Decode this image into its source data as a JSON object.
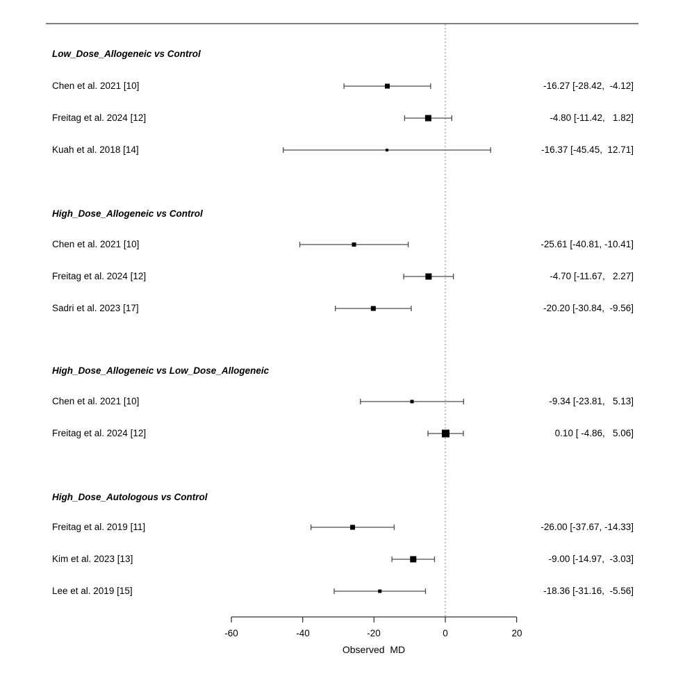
{
  "chart_data": {
    "type": "forest",
    "xlabel": "Observed  MD",
    "xlim": [
      -60,
      20
    ],
    "x_ticks": [
      -60,
      -40,
      -20,
      0,
      20
    ],
    "x_tick_labels": [
      "-60",
      "-40",
      "-20",
      "0",
      "20"
    ],
    "zero_reference_line": 0,
    "axis_color": "#333333",
    "ci_line_color": "#4a4a4a",
    "marker_color": "#000000",
    "dotted_line_color": "#999999",
    "top_rule_color": "#555555",
    "groups": [
      {
        "label": "Low_Dose_Allogeneic vs Control",
        "studies": [
          {
            "label": "Chen et al. 2021 [10]",
            "md": -16.27,
            "ci_low": -28.42,
            "ci_high": -4.12,
            "annotation": "-16.27 [-28.42,  -4.12]",
            "marker_size": 7
          },
          {
            "label": "Freitag et al. 2024 [12]",
            "md": -4.8,
            "ci_low": -11.42,
            "ci_high": 1.82,
            "annotation": "-4.80 [-11.42,   1.82]",
            "marker_size": 9
          },
          {
            "label": "Kuah et al. 2018 [14]",
            "md": -16.37,
            "ci_low": -45.45,
            "ci_high": 12.71,
            "annotation": "-16.37 [-45.45,  12.71]",
            "marker_size": 4
          }
        ]
      },
      {
        "label": "High_Dose_Allogeneic vs Control",
        "studies": [
          {
            "label": "Chen et al. 2021 [10]",
            "md": -25.61,
            "ci_low": -40.81,
            "ci_high": -10.41,
            "annotation": "-25.61 [-40.81, -10.41]",
            "marker_size": 6
          },
          {
            "label": "Freitag et al. 2024 [12]",
            "md": -4.7,
            "ci_low": -11.67,
            "ci_high": 2.27,
            "annotation": "-4.70 [-11.67,   2.27]",
            "marker_size": 9
          },
          {
            "label": "Sadri et al. 2023 [17]",
            "md": -20.2,
            "ci_low": -30.84,
            "ci_high": -9.56,
            "annotation": "-20.20 [-30.84,  -9.56]",
            "marker_size": 7
          }
        ]
      },
      {
        "label": "High_Dose_Allogeneic vs Low_Dose_Allogeneic",
        "studies": [
          {
            "label": "Chen et al. 2021 [10]",
            "md": -9.34,
            "ci_low": -23.81,
            "ci_high": 5.13,
            "annotation": "-9.34 [-23.81,   5.13]",
            "marker_size": 5
          },
          {
            "label": "Freitag et al. 2024 [12]",
            "md": 0.1,
            "ci_low": -4.86,
            "ci_high": 5.06,
            "annotation": "0.10 [ -4.86,   5.06]",
            "marker_size": 11
          }
        ]
      },
      {
        "label": "High_Dose_Autologous vs Control",
        "studies": [
          {
            "label": "Freitag et al. 2019 [11]",
            "md": -26.0,
            "ci_low": -37.67,
            "ci_high": -14.33,
            "annotation": "-26.00 [-37.67, -14.33]",
            "marker_size": 7
          },
          {
            "label": "Kim et al. 2023 [13]",
            "md": -9.0,
            "ci_low": -14.97,
            "ci_high": -3.03,
            "annotation": "-9.00 [-14.97,  -3.03]",
            "marker_size": 9
          },
          {
            "label": "Lee et al. 2019 [15]",
            "md": -18.36,
            "ci_low": -31.16,
            "ci_high": -5.56,
            "annotation": "-18.36 [-31.16,  -5.56]",
            "marker_size": 5
          }
        ]
      }
    ]
  }
}
